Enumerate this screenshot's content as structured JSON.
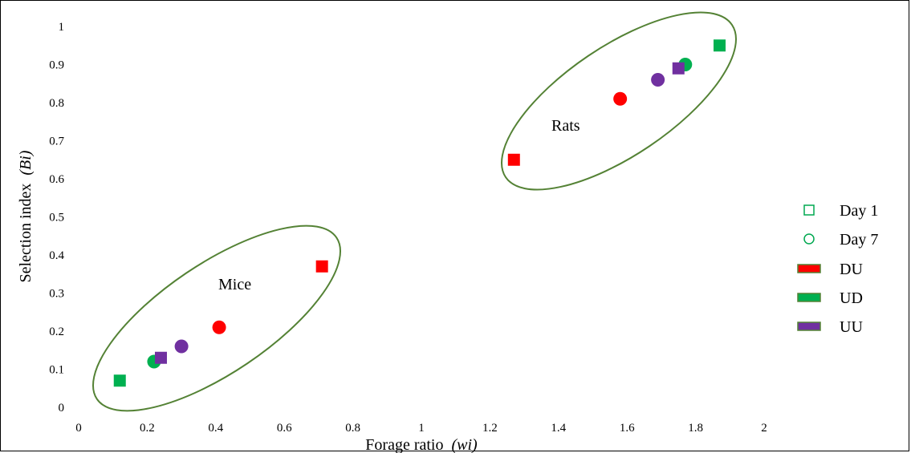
{
  "chart_data": {
    "type": "scatter",
    "title": "",
    "xlabel": "Forage ratio",
    "xlabel_var": "(wi)",
    "ylabel": "Selection index",
    "ylabel_var": "(Bi)",
    "xlim": [
      0,
      2
    ],
    "ylim": [
      0,
      1
    ],
    "x_ticks": [
      "0",
      "0.2",
      "0.4",
      "0.6",
      "0.8",
      "1",
      "1.2",
      "1.4",
      "1.6",
      "1.8",
      "2"
    ],
    "y_ticks": [
      "0",
      "0.1",
      "0.2",
      "0.3",
      "0.4",
      "0.5",
      "0.6",
      "0.7",
      "0.8",
      "0.9",
      "1"
    ],
    "grid": false,
    "legend_position": "right",
    "legend": [
      {
        "label": "Day 1",
        "marker": "square-outline",
        "color": "#00A850"
      },
      {
        "label": "Day 7",
        "marker": "circle-outline",
        "color": "#00A850"
      },
      {
        "label": "DU",
        "marker": "bar",
        "color": "#FF0000"
      },
      {
        "label": "UD",
        "marker": "bar",
        "color": "#00B050"
      },
      {
        "label": "UU",
        "marker": "bar",
        "color": "#7030A0"
      }
    ],
    "series": [
      {
        "group": "DU",
        "day": "Day 1",
        "marker": "square",
        "color": "#FF0000",
        "points": [
          [
            0.71,
            0.37
          ],
          [
            1.27,
            0.65
          ]
        ]
      },
      {
        "group": "DU",
        "day": "Day 7",
        "marker": "circle",
        "color": "#FF0000",
        "points": [
          [
            0.41,
            0.21
          ],
          [
            1.58,
            0.81
          ]
        ]
      },
      {
        "group": "UD",
        "day": "Day 1",
        "marker": "square",
        "color": "#00B050",
        "points": [
          [
            0.12,
            0.07
          ],
          [
            1.87,
            0.95
          ]
        ]
      },
      {
        "group": "UD",
        "day": "Day 7",
        "marker": "circle",
        "color": "#00B050",
        "points": [
          [
            0.22,
            0.12
          ],
          [
            1.77,
            0.9
          ]
        ]
      },
      {
        "group": "UU",
        "day": "Day 1",
        "marker": "square",
        "color": "#7030A0",
        "points": [
          [
            0.24,
            0.13
          ],
          [
            1.75,
            0.89
          ]
        ]
      },
      {
        "group": "UU",
        "day": "Day 7",
        "marker": "circle",
        "color": "#7030A0",
        "points": [
          [
            0.3,
            0.16
          ],
          [
            1.69,
            0.86
          ]
        ]
      }
    ],
    "annotations": [
      {
        "text": "Mice",
        "ellipse_color": "#548235"
      },
      {
        "text": "Rats",
        "ellipse_color": "#548235"
      }
    ]
  }
}
